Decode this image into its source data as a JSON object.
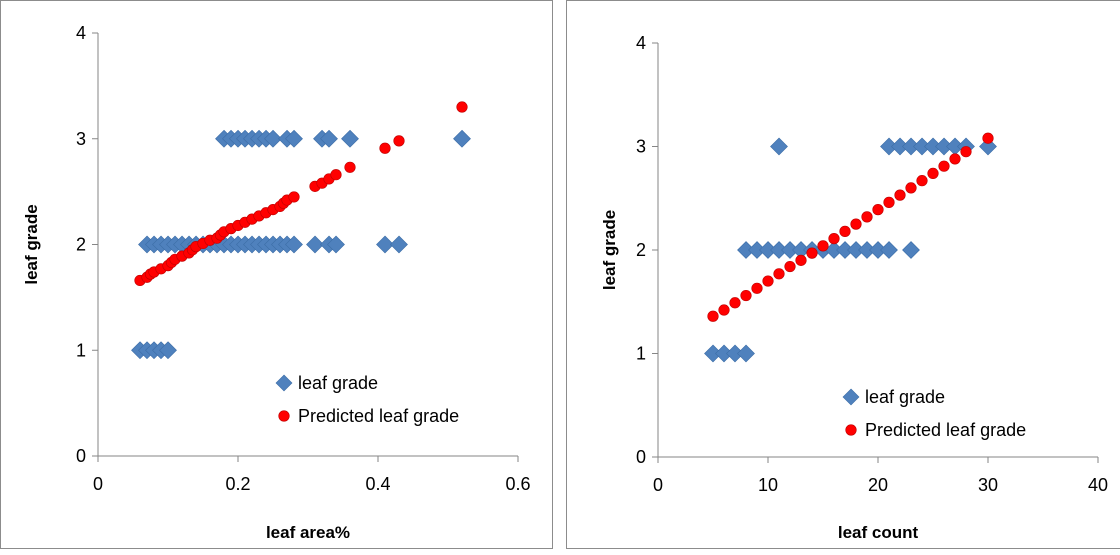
{
  "chart_data": [
    {
      "type": "scatter",
      "xlabel": "leaf area%",
      "ylabel": "leaf grade",
      "xlim": [
        0,
        0.6
      ],
      "ylim": [
        0,
        4
      ],
      "x_ticks": [
        "0",
        "0.2",
        "0.4",
        "0.6"
      ],
      "y_ticks": [
        "0",
        "1",
        "2",
        "3",
        "4"
      ],
      "grid": false,
      "legend_position": "bottom-right",
      "series": [
        {
          "name": "leaf grade",
          "color": "#4f81bd",
          "marker": "diamond",
          "points": [
            [
              0.06,
              1
            ],
            [
              0.07,
              1
            ],
            [
              0.08,
              1
            ],
            [
              0.09,
              1
            ],
            [
              0.1,
              1
            ],
            [
              0.07,
              2
            ],
            [
              0.08,
              2
            ],
            [
              0.09,
              2
            ],
            [
              0.1,
              2
            ],
            [
              0.11,
              2
            ],
            [
              0.12,
              2
            ],
            [
              0.13,
              2
            ],
            [
              0.14,
              2
            ],
            [
              0.15,
              2
            ],
            [
              0.16,
              2
            ],
            [
              0.17,
              2
            ],
            [
              0.18,
              2
            ],
            [
              0.19,
              2
            ],
            [
              0.2,
              2
            ],
            [
              0.21,
              2
            ],
            [
              0.22,
              2
            ],
            [
              0.23,
              2
            ],
            [
              0.24,
              2
            ],
            [
              0.25,
              2
            ],
            [
              0.26,
              2
            ],
            [
              0.27,
              2
            ],
            [
              0.28,
              2
            ],
            [
              0.31,
              2
            ],
            [
              0.33,
              2
            ],
            [
              0.34,
              2
            ],
            [
              0.41,
              2
            ],
            [
              0.43,
              2
            ],
            [
              0.18,
              3
            ],
            [
              0.19,
              3
            ],
            [
              0.2,
              3
            ],
            [
              0.21,
              3
            ],
            [
              0.22,
              3
            ],
            [
              0.23,
              3
            ],
            [
              0.24,
              3
            ],
            [
              0.25,
              3
            ],
            [
              0.27,
              3
            ],
            [
              0.28,
              3
            ],
            [
              0.32,
              3
            ],
            [
              0.33,
              3
            ],
            [
              0.36,
              3
            ],
            [
              0.52,
              3
            ]
          ]
        },
        {
          "name": "Predicted leaf grade",
          "color": "#ff0000",
          "marker": "circle",
          "points": [
            [
              0.06,
              1.66
            ],
            [
              0.07,
              1.69
            ],
            [
              0.075,
              1.72
            ],
            [
              0.08,
              1.74
            ],
            [
              0.09,
              1.77
            ],
            [
              0.1,
              1.8
            ],
            [
              0.105,
              1.83
            ],
            [
              0.11,
              1.86
            ],
            [
              0.12,
              1.89
            ],
            [
              0.13,
              1.92
            ],
            [
              0.135,
              1.95
            ],
            [
              0.14,
              1.98
            ],
            [
              0.15,
              2.01
            ],
            [
              0.16,
              2.04
            ],
            [
              0.17,
              2.06
            ],
            [
              0.175,
              2.09
            ],
            [
              0.18,
              2.12
            ],
            [
              0.19,
              2.15
            ],
            [
              0.2,
              2.18
            ],
            [
              0.21,
              2.21
            ],
            [
              0.22,
              2.24
            ],
            [
              0.23,
              2.27
            ],
            [
              0.24,
              2.3
            ],
            [
              0.25,
              2.33
            ],
            [
              0.26,
              2.36
            ],
            [
              0.265,
              2.39
            ],
            [
              0.27,
              2.42
            ],
            [
              0.28,
              2.45
            ],
            [
              0.31,
              2.55
            ],
            [
              0.32,
              2.58
            ],
            [
              0.33,
              2.62
            ],
            [
              0.34,
              2.66
            ],
            [
              0.36,
              2.73
            ],
            [
              0.41,
              2.91
            ],
            [
              0.43,
              2.98
            ],
            [
              0.52,
              3.3
            ]
          ]
        }
      ]
    },
    {
      "type": "scatter",
      "xlabel": "leaf count",
      "ylabel": "leaf grade",
      "xlim": [
        0,
        40
      ],
      "ylim": [
        0,
        4
      ],
      "x_ticks": [
        "0",
        "10",
        "20",
        "30",
        "40"
      ],
      "y_ticks": [
        "0",
        "1",
        "2",
        "3",
        "4"
      ],
      "grid": false,
      "legend_position": "bottom-right",
      "series": [
        {
          "name": "leaf grade",
          "color": "#4f81bd",
          "marker": "diamond",
          "points": [
            [
              5,
              1
            ],
            [
              6,
              1
            ],
            [
              7,
              1
            ],
            [
              8,
              1
            ],
            [
              8,
              2
            ],
            [
              9,
              2
            ],
            [
              10,
              2
            ],
            [
              11,
              2
            ],
            [
              12,
              2
            ],
            [
              13,
              2
            ],
            [
              14,
              2
            ],
            [
              15,
              2
            ],
            [
              16,
              2
            ],
            [
              17,
              2
            ],
            [
              18,
              2
            ],
            [
              19,
              2
            ],
            [
              20,
              2
            ],
            [
              21,
              2
            ],
            [
              23,
              2
            ],
            [
              11,
              3
            ],
            [
              21,
              3
            ],
            [
              22,
              3
            ],
            [
              23,
              3
            ],
            [
              24,
              3
            ],
            [
              25,
              3
            ],
            [
              26,
              3
            ],
            [
              27,
              3
            ],
            [
              28,
              3
            ],
            [
              30,
              3
            ]
          ]
        },
        {
          "name": "Predicted leaf grade",
          "color": "#ff0000",
          "marker": "circle",
          "points": [
            [
              5,
              1.36
            ],
            [
              6,
              1.42
            ],
            [
              7,
              1.49
            ],
            [
              8,
              1.56
            ],
            [
              9,
              1.63
            ],
            [
              10,
              1.7
            ],
            [
              11,
              1.77
            ],
            [
              12,
              1.84
            ],
            [
              13,
              1.9
            ],
            [
              14,
              1.97
            ],
            [
              15,
              2.04
            ],
            [
              16,
              2.11
            ],
            [
              17,
              2.18
            ],
            [
              18,
              2.25
            ],
            [
              19,
              2.32
            ],
            [
              20,
              2.39
            ],
            [
              21,
              2.46
            ],
            [
              22,
              2.53
            ],
            [
              23,
              2.6
            ],
            [
              24,
              2.67
            ],
            [
              25,
              2.74
            ],
            [
              26,
              2.81
            ],
            [
              27,
              2.88
            ],
            [
              28,
              2.95
            ],
            [
              30,
              3.08
            ]
          ]
        }
      ]
    }
  ]
}
